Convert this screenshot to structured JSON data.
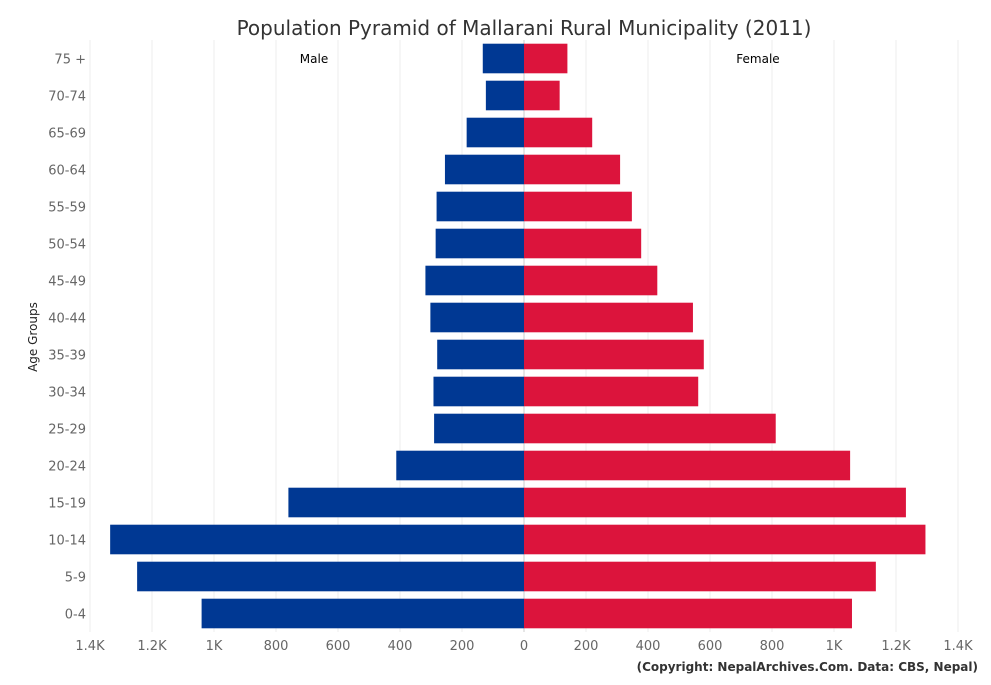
{
  "chart_data": {
    "type": "bar",
    "orientation": "horizontal-pyramid",
    "title": "Population Pyramid of Mallarani Rural Municipality (2011)",
    "ylabel": "Age Groups",
    "categories": [
      "75 +",
      "70-74",
      "65-69",
      "60-64",
      "55-59",
      "50-54",
      "45-49",
      "40-44",
      "35-39",
      "30-34",
      "25-29",
      "20-24",
      "15-19",
      "10-14",
      "5-9",
      "0-4"
    ],
    "series": [
      {
        "name": "Male",
        "color": "#003893",
        "values": [
          133,
          123,
          185,
          255,
          282,
          285,
          318,
          302,
          280,
          292,
          290,
          412,
          760,
          1335,
          1248,
          1040
        ]
      },
      {
        "name": "Female",
        "color": "#DC143C",
        "values": [
          140,
          115,
          220,
          310,
          348,
          378,
          430,
          545,
          580,
          562,
          812,
          1052,
          1232,
          1295,
          1135,
          1058
        ]
      }
    ],
    "xlim": [
      -1400,
      1400
    ],
    "x_ticks": [
      {
        "value": -1400,
        "label": "1.4K"
      },
      {
        "value": -1200,
        "label": "1.2K"
      },
      {
        "value": -1000,
        "label": "1K"
      },
      {
        "value": -800,
        "label": "800"
      },
      {
        "value": -600,
        "label": "600"
      },
      {
        "value": -400,
        "label": "400"
      },
      {
        "value": -200,
        "label": "200"
      },
      {
        "value": 0,
        "label": "0"
      },
      {
        "value": 200,
        "label": "200"
      },
      {
        "value": 400,
        "label": "400"
      },
      {
        "value": 600,
        "label": "600"
      },
      {
        "value": 800,
        "label": "800"
      },
      {
        "value": 1000,
        "label": "1K"
      },
      {
        "value": 1200,
        "label": "1.2K"
      },
      {
        "value": 1400,
        "label": "1.4K"
      }
    ],
    "grid": true,
    "credit": "(Copyright: NepalArchives.Com. Data: CBS, Nepal)"
  }
}
